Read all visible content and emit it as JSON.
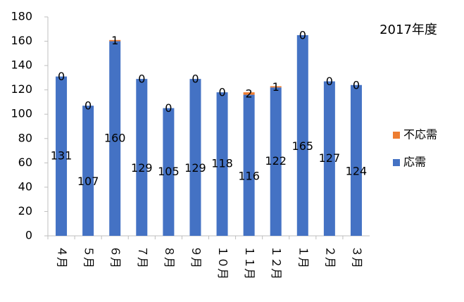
{
  "chart_data": {
    "type": "stacked_bar",
    "title": "2017年度",
    "categories": [
      "４月",
      "５月",
      "６月",
      "７月",
      "８月",
      "９月",
      "１０月",
      "１１月",
      "１２月",
      "１月",
      "２月",
      "３月"
    ],
    "series": [
      {
        "name": "応需",
        "color": "#4472c4",
        "values": [
          131,
          107,
          160,
          129,
          105,
          129,
          118,
          116,
          122,
          165,
          127,
          124
        ]
      },
      {
        "name": "不応需",
        "color": "#ed7d31",
        "values": [
          0,
          0,
          1,
          0,
          0,
          0,
          0,
          2,
          1,
          0,
          0,
          0
        ]
      }
    ],
    "ylim": [
      0,
      180
    ],
    "yticks": [
      0,
      20,
      40,
      60,
      80,
      100,
      120,
      140,
      160,
      180
    ],
    "grid": false,
    "legend": "right"
  }
}
